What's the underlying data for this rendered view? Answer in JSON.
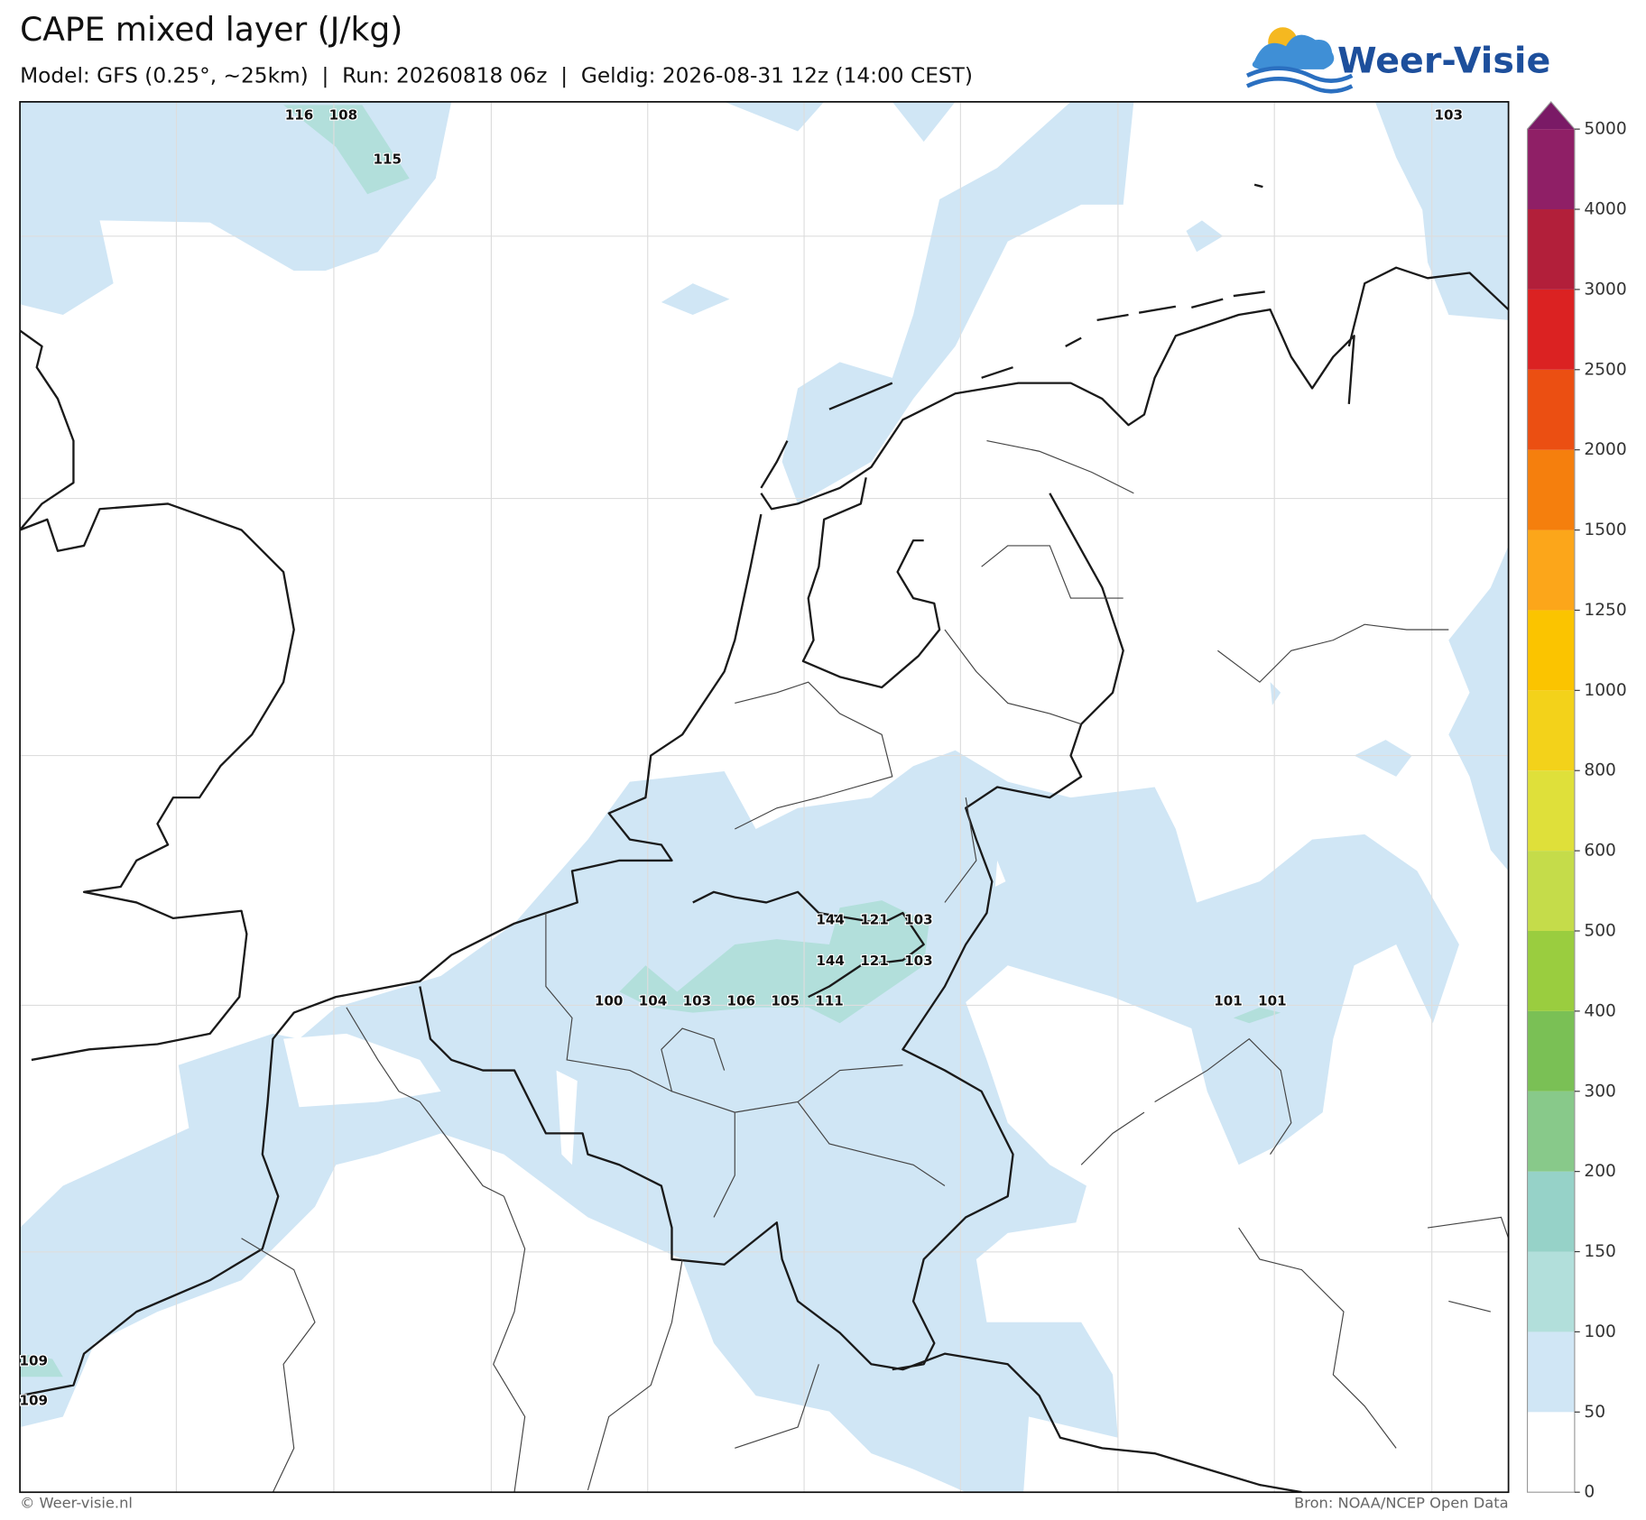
{
  "header": {
    "title": "CAPE mixed layer (J/kg)",
    "subtitle": "Model: GFS (0.25°, ~25km)  |  Run: 20260818 06z  |  Geldig: 2026-08-31 12z (14:00 CEST)",
    "logo": "Weer-Visie"
  },
  "map_labels": [
    116,
    108,
    115,
    103,
    144,
    121,
    103,
    144,
    121,
    103,
    100,
    104,
    103,
    106,
    105,
    111,
    101,
    101,
    109,
    109
  ],
  "colorbar": {
    "levels": [
      0,
      50,
      100,
      150,
      200,
      300,
      400,
      500,
      600,
      800,
      1000,
      1250,
      1500,
      2000,
      2500,
      3000,
      4000,
      5000
    ],
    "colors": [
      "#ffffff",
      "#d0e6f5",
      "#b2dfdb",
      "#96d2c8",
      "#88c98a",
      "#7ac055",
      "#9acd3f",
      "#c5dc4a",
      "#dfe03a",
      "#f3d21a",
      "#fbc400",
      "#fca61a",
      "#f57f0d",
      "#eb4f12",
      "#db2222",
      "#b21f3a",
      "#8f1f66"
    ],
    "extend_color": "#7a1a66"
  },
  "footer": {
    "left": "© Weer-visie.nl",
    "right": "Bron: NOAA/NCEP Open Data"
  }
}
